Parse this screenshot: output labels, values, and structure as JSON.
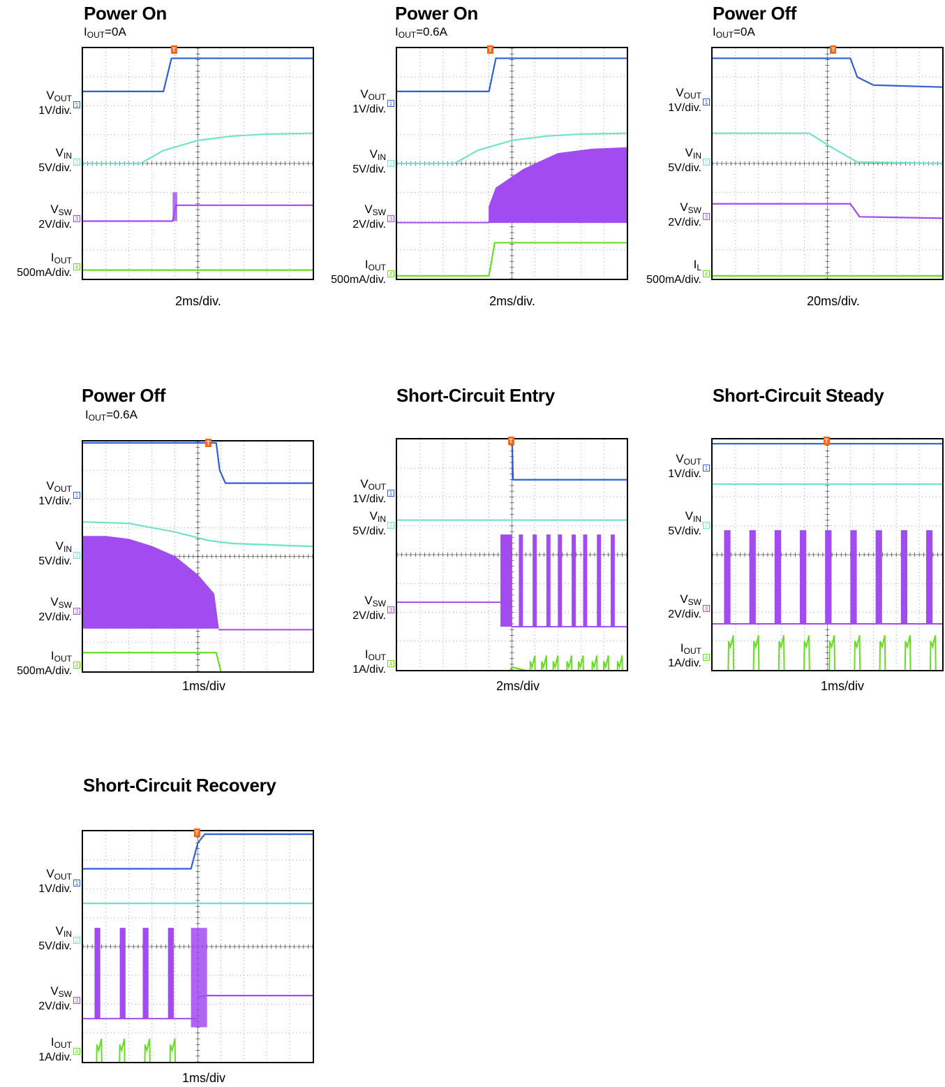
{
  "colors": {
    "vout": "#2e5fd8",
    "vin": "#6fe3c8",
    "vsw": "#a24bf0",
    "iout": "#66dd22",
    "trigger": "#f36a22",
    "grid": "#8a8a8a"
  },
  "chart_data": [
    {
      "type": "line",
      "title": "Power On",
      "subtitle": {
        "main": "I",
        "sub": "OUT",
        "rest": "=0A"
      },
      "timebase": "2ms/div.",
      "channels": [
        {
          "name": "V",
          "sub": "OUT",
          "scale": "1V/div.",
          "marker": "1"
        },
        {
          "name": "V",
          "sub": "IN",
          "scale": "5V/div.",
          "marker": "2"
        },
        {
          "name": "V",
          "sub": "SW",
          "scale": "2V/div.",
          "marker": "3"
        },
        {
          "name": "I",
          "sub": "OUT",
          "scale": "500mA/div.",
          "marker": "4"
        }
      ],
      "series": [
        {
          "channel": "vout",
          "x": [
            0,
            3.5,
            3.85,
            10
          ],
          "y": [
            2.5,
            2.5,
            3.65,
            3.65
          ]
        },
        {
          "channel": "vin",
          "x": [
            0,
            2.5,
            3.5,
            5,
            6.5,
            8,
            10
          ],
          "y": [
            0,
            0,
            0.45,
            0.8,
            0.95,
            1.02,
            1.05
          ]
        },
        {
          "channel": "vsw",
          "x": [
            0,
            3.9,
            4.05,
            10
          ],
          "y": [
            -2,
            -2,
            -1.45,
            -1.45
          ],
          "burst": [
            3.9,
            4.1,
            -2,
            -1.0
          ]
        },
        {
          "channel": "iout",
          "x": [
            0,
            10
          ],
          "y": [
            -3.7,
            -3.7
          ]
        }
      ]
    },
    {
      "type": "line",
      "title": "Power On",
      "subtitle": {
        "main": "I",
        "sub": "OUT",
        "rest": "=0.6A"
      },
      "timebase": "2ms/div.",
      "channels": [
        {
          "name": "V",
          "sub": "OUT",
          "scale": "1V/div.",
          "marker": "1"
        },
        {
          "name": "V",
          "sub": "IN",
          "scale": "5V/div.",
          "marker": "2"
        },
        {
          "name": "V",
          "sub": "SW",
          "scale": "2V/div.",
          "marker": "3"
        },
        {
          "name": "I",
          "sub": "OUT",
          "scale": "500mA/div.",
          "marker": "4"
        }
      ],
      "series": [
        {
          "channel": "vout",
          "x": [
            0,
            4,
            4.3,
            10
          ],
          "y": [
            2.5,
            2.5,
            3.65,
            3.65
          ]
        },
        {
          "channel": "vin",
          "x": [
            0,
            2.5,
            3.5,
            5,
            6.5,
            8,
            10
          ],
          "y": [
            0,
            0,
            0.45,
            0.8,
            0.95,
            1.02,
            1.05
          ]
        },
        {
          "channel": "iout",
          "x": [
            0,
            4,
            4.25,
            10
          ],
          "y": [
            -3.9,
            -3.9,
            -2.75,
            -2.75
          ]
        }
      ],
      "envelope": {
        "channel": "vsw",
        "x": [
          4,
          4.3,
          5.5,
          7,
          8.5,
          10
        ],
        "top": [
          -1.5,
          -0.85,
          -0.2,
          0.35,
          0.5,
          0.55
        ],
        "base": -2.05
      }
    },
    {
      "type": "line",
      "title": "Power Off",
      "subtitle": {
        "main": "I",
        "sub": "OUT",
        "rest": "=0A"
      },
      "timebase": "20ms/div.",
      "channels": [
        {
          "name": "V",
          "sub": "OUT",
          "scale": "1V/div.",
          "marker": "1"
        },
        {
          "name": "V",
          "sub": "IN",
          "scale": "5V/div.",
          "marker": "2"
        },
        {
          "name": "V",
          "sub": "SW",
          "scale": "2V/div.",
          "marker": "3"
        },
        {
          "name": "I",
          "sub": "L",
          "scale": "500mA/div.",
          "marker": "4"
        }
      ],
      "series": [
        {
          "channel": "vout",
          "x": [
            0,
            6,
            6.3,
            7,
            10
          ],
          "y": [
            3.65,
            3.65,
            3.0,
            2.72,
            2.65
          ]
        },
        {
          "channel": "vin",
          "x": [
            0,
            4.2,
            5.2,
            6.3,
            10
          ],
          "y": [
            1.05,
            1.05,
            0.55,
            0.05,
            0
          ]
        },
        {
          "channel": "vsw",
          "x": [
            0,
            6,
            6.4,
            10
          ],
          "y": [
            -1.4,
            -1.4,
            -1.85,
            -1.9
          ]
        },
        {
          "channel": "iout",
          "x": [
            0,
            10
          ],
          "y": [
            -3.9,
            -3.9
          ]
        }
      ]
    },
    {
      "type": "line",
      "title": "Power Off",
      "subtitle": {
        "main": "I",
        "sub": "OUT",
        "rest": "=0.6A"
      },
      "timebase": "1ms/div",
      "channels": [
        {
          "name": "V",
          "sub": "OUT",
          "scale": "1V/div.",
          "marker": "1"
        },
        {
          "name": "V",
          "sub": "IN",
          "scale": "5V/div.",
          "marker": "2"
        },
        {
          "name": "V",
          "sub": "SW",
          "scale": "2V/div.",
          "marker": "3"
        },
        {
          "name": "I",
          "sub": "OUT",
          "scale": "500mA/div.",
          "marker": "4"
        }
      ],
      "series": [
        {
          "channel": "vout",
          "x": [
            0,
            5.8,
            5.95,
            6.2,
            10
          ],
          "y": [
            3.95,
            3.95,
            3.0,
            2.55,
            2.55
          ]
        },
        {
          "channel": "vin",
          "x": [
            0,
            2,
            4,
            5.5,
            6.5,
            10
          ],
          "y": [
            1.2,
            1.15,
            0.85,
            0.55,
            0.45,
            0.35
          ]
        },
        {
          "channel": "iout",
          "x": [
            0,
            5.8,
            6.0,
            6.4,
            10
          ],
          "y": [
            -3.35,
            -3.35,
            -4.0,
            -4.4,
            -4.4
          ]
        }
      ],
      "envelope": {
        "channel": "vsw",
        "x": [
          0,
          1,
          2,
          3,
          4,
          5,
          5.7,
          5.9
        ],
        "top": [
          0.7,
          0.7,
          0.6,
          0.35,
          0.0,
          -0.65,
          -1.3,
          -2.5
        ],
        "base": -2.5,
        "tail": -2.55
      }
    },
    {
      "type": "line",
      "title": "Short-Circuit Entry",
      "timebase": "2ms/div",
      "channels": [
        {
          "name": "V",
          "sub": "OUT",
          "scale": "1V/div.",
          "marker": "1"
        },
        {
          "name": "V",
          "sub": "IN",
          "scale": "5V/div.",
          "marker": "2"
        },
        {
          "name": "V",
          "sub": "SW",
          "scale": "2V/div.",
          "marker": "3"
        },
        {
          "name": "I",
          "sub": "OUT",
          "scale": "1A/div.",
          "marker": "4"
        }
      ],
      "series": [
        {
          "channel": "vout",
          "x": [
            0,
            5,
            5.05,
            10
          ],
          "y": [
            4.1,
            4.1,
            2.6,
            2.6
          ]
        },
        {
          "channel": "vin",
          "x": [
            0,
            10
          ],
          "y": [
            1.2,
            1.2
          ]
        },
        {
          "channel": "iout",
          "x": [
            0,
            4.3,
            5,
            10
          ],
          "y": [
            -4.9,
            -4.9,
            -3.9,
            -4.9
          ]
        }
      ],
      "pulses": {
        "channel": "vsw",
        "base": -2.5,
        "top": 0.7,
        "lead": {
          "x": [
            0,
            4.5
          ],
          "y": -1.65
        },
        "block": [
          4.5,
          5.0
        ],
        "starts": [
          5.3,
          5.9,
          6.5,
          7.0,
          7.6,
          8.1,
          8.7,
          9.3
        ],
        "width": 0.18
      },
      "ipulses": {
        "base": -4.9,
        "top": -3.9,
        "starts": [
          5.8,
          6.3,
          6.8,
          7.4,
          7.9,
          8.5,
          9.0,
          9.6
        ]
      }
    },
    {
      "type": "line",
      "title": "Short-Circuit Steady",
      "timebase": "1ms/div",
      "channels": [
        {
          "name": "V",
          "sub": "OUT",
          "scale": "1V/div.",
          "marker": "1"
        },
        {
          "name": "V",
          "sub": "IN",
          "scale": "5V/div.",
          "marker": "2"
        },
        {
          "name": "V",
          "sub": "SW",
          "scale": "2V/div.",
          "marker": "3"
        },
        {
          "name": "I",
          "sub": "OUT",
          "scale": "1A/div.",
          "marker": "4"
        }
      ],
      "series": [
        {
          "channel": "vout",
          "x": [
            0,
            10
          ],
          "y": [
            3.85,
            3.85
          ]
        },
        {
          "channel": "vin",
          "x": [
            0,
            10
          ],
          "y": [
            2.45,
            2.45
          ]
        },
        {
          "channel": "iout",
          "x": [
            0,
            10
          ],
          "y": [
            -4.1,
            -4.1
          ]
        }
      ],
      "pulses": {
        "channel": "vsw",
        "base": -2.4,
        "top": 0.85,
        "starts": [
          0.5,
          1.6,
          2.7,
          3.8,
          4.9,
          6.0,
          7.1,
          8.2,
          9.3
        ],
        "width": 0.28
      },
      "ipulses": {
        "base": -4.1,
        "top": -3.2,
        "starts": [
          0.7,
          1.8,
          2.9,
          4.0,
          5.1,
          6.2,
          7.3,
          8.4,
          9.5
        ]
      }
    },
    {
      "type": "line",
      "title": "Short-Circuit Recovery",
      "timebase": "1ms/div",
      "channels": [
        {
          "name": "V",
          "sub": "OUT",
          "scale": "1V/div.",
          "marker": "1"
        },
        {
          "name": "V",
          "sub": "IN",
          "scale": "5V/div.",
          "marker": "2"
        },
        {
          "name": "V",
          "sub": "SW",
          "scale": "2V/div.",
          "marker": "3"
        },
        {
          "name": "I",
          "sub": "OUT",
          "scale": "1A/div.",
          "marker": "4"
        }
      ],
      "series": [
        {
          "channel": "vout",
          "x": [
            0,
            4.7,
            5.0,
            5.3,
            10
          ],
          "y": [
            2.7,
            2.7,
            3.6,
            3.9,
            3.9
          ]
        },
        {
          "channel": "vin",
          "x": [
            0,
            10
          ],
          "y": [
            1.5,
            1.5
          ]
        },
        {
          "channel": "vsw",
          "x": [
            5.0,
            5.4,
            10
          ],
          "y": [
            -1.75,
            -1.7,
            -1.7
          ]
        },
        {
          "channel": "iout",
          "x": [
            0,
            10
          ],
          "y": [
            -4.6,
            -4.6
          ]
        }
      ],
      "pulses": {
        "channel": "vsw",
        "base": -2.5,
        "top": 0.65,
        "starts": [
          0.5,
          1.6,
          2.6,
          3.7
        ],
        "width": 0.25,
        "base_end": 5.0,
        "burst": [
          4.7,
          5.4
        ]
      },
      "ipulses": {
        "base": -4.6,
        "top": -3.6,
        "starts": [
          0.6,
          1.6,
          2.7,
          3.8
        ]
      }
    }
  ]
}
